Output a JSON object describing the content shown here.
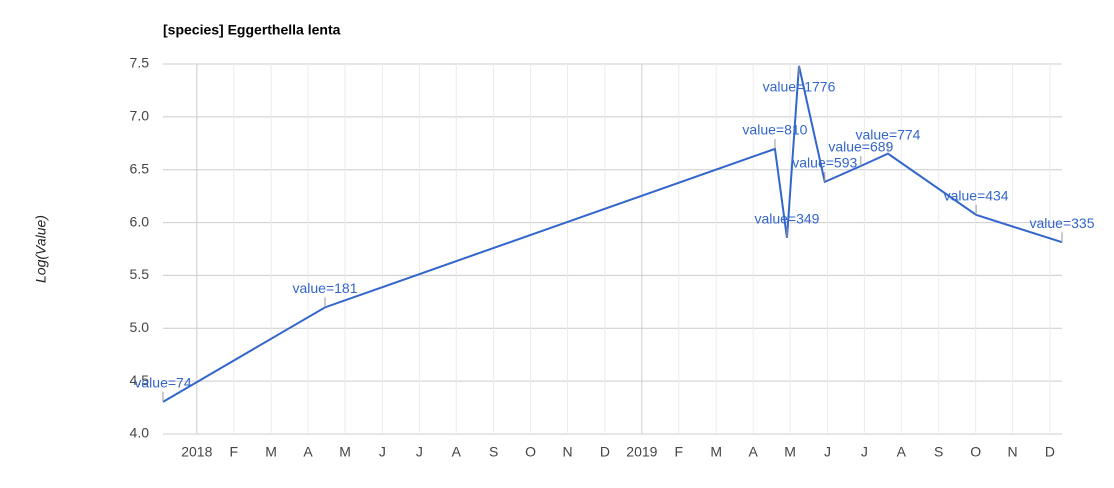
{
  "chart_data": {
    "type": "line",
    "title": "[species] Eggerthella lenta",
    "y_label": "Log(Value)",
    "x": [
      2017.924,
      2018.288,
      2019.299,
      2019.326,
      2019.353,
      2019.411,
      2019.492,
      2019.553,
      2019.751,
      2019.944
    ],
    "series": [
      {
        "color": "#3366cc",
        "values": [
          4.304,
          5.198,
          6.697,
          5.855,
          7.482,
          6.385,
          6.535,
          6.652,
          6.073,
          5.814
        ],
        "annotations": [
          "value=74",
          "value=181",
          "value=810",
          "value=349",
          "value=1776",
          "value=593",
          "value=689",
          "value=774",
          "value=434",
          "value=335"
        ]
      }
    ],
    "xlim": [
      2017.924,
      2019.944
    ],
    "xticks": [
      2018,
      {
        "value": 2018.083,
        "label": "F"
      },
      {
        "value": 2018.167,
        "label": "M"
      },
      {
        "value": 2018.25,
        "label": "A"
      },
      {
        "value": 2018.333,
        "label": "M"
      },
      {
        "value": 2018.417,
        "label": "J"
      },
      {
        "value": 2018.5,
        "label": "J"
      },
      {
        "value": 2018.583,
        "label": "A"
      },
      {
        "value": 2018.667,
        "label": "S"
      },
      {
        "value": 2018.75,
        "label": "O"
      },
      {
        "value": 2018.833,
        "label": "N"
      },
      {
        "value": 2018.917,
        "label": "D"
      },
      2019,
      {
        "value": 2019.083,
        "label": "F"
      },
      {
        "value": 2019.167,
        "label": "M"
      },
      {
        "value": 2019.25,
        "label": "A"
      },
      {
        "value": 2019.333,
        "label": "M"
      },
      {
        "value": 2019.417,
        "label": "J"
      },
      {
        "value": 2019.5,
        "label": "J"
      },
      {
        "value": 2019.583,
        "label": "A"
      },
      {
        "value": 2019.667,
        "label": "S"
      },
      {
        "value": 2019.75,
        "label": "O"
      },
      {
        "value": 2019.833,
        "label": "N"
      },
      {
        "value": 2019.917,
        "label": "D"
      }
    ],
    "ylim": [
      4,
      7.5
    ],
    "yticks": [
      {
        "value": 4,
        "label": "4.0"
      },
      4.5,
      {
        "value": 5,
        "label": "5.0"
      },
      5.5,
      {
        "value": 6,
        "label": "6.0"
      },
      6.5,
      {
        "value": 7,
        "label": "7.0"
      },
      7.5
    ],
    "grid": true
  }
}
